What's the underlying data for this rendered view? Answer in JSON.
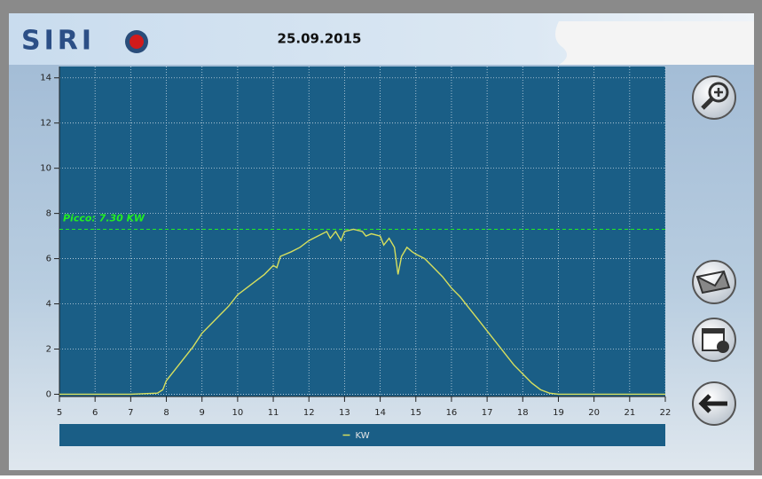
{
  "header": {
    "logo": "SIRI",
    "date": "25.09.2015"
  },
  "chart_data": {
    "type": "line",
    "x": [
      5,
      6,
      7,
      7.75,
      7.9,
      8,
      8.25,
      8.5,
      8.75,
      9,
      9.25,
      9.5,
      9.75,
      10,
      10.25,
      10.5,
      10.75,
      11,
      11.1,
      11.2,
      11.5,
      11.75,
      12,
      12.25,
      12.5,
      12.6,
      12.75,
      12.9,
      13,
      13.25,
      13.5,
      13.6,
      13.75,
      14,
      14.1,
      14.25,
      14.4,
      14.5,
      14.6,
      14.75,
      14.9,
      15,
      15.25,
      15.5,
      15.75,
      16,
      16.25,
      16.5,
      16.75,
      17,
      17.25,
      17.5,
      17.75,
      18,
      18.25,
      18.5,
      18.75,
      19,
      20,
      21,
      22
    ],
    "series": [
      {
        "name": "KW",
        "color": "#d6df5e",
        "values": [
          0,
          0,
          0,
          0.05,
          0.2,
          0.6,
          1.1,
          1.6,
          2.1,
          2.7,
          3.1,
          3.5,
          3.9,
          4.4,
          4.7,
          5.0,
          5.3,
          5.7,
          5.6,
          6.1,
          6.3,
          6.5,
          6.8,
          7.0,
          7.2,
          6.9,
          7.2,
          6.8,
          7.2,
          7.3,
          7.2,
          7.0,
          7.1,
          7.0,
          6.6,
          6.9,
          6.5,
          5.3,
          6.1,
          6.5,
          6.3,
          6.2,
          6.0,
          5.6,
          5.2,
          4.7,
          4.3,
          3.8,
          3.3,
          2.8,
          2.3,
          1.8,
          1.3,
          0.9,
          0.5,
          0.2,
          0.05,
          0,
          0,
          0,
          0
        ]
      }
    ],
    "peak": {
      "value": 7.3,
      "label": "Picco: 7.30 KW",
      "color": "#22ee22"
    },
    "xlim": [
      5,
      22
    ],
    "xticks": [
      5,
      6,
      7,
      8,
      9,
      10,
      11,
      12,
      13,
      14,
      15,
      16,
      17,
      18,
      19,
      20,
      21,
      22
    ],
    "ylim": [
      -0.1,
      14.5
    ],
    "yticks": [
      0,
      2,
      4,
      6,
      8,
      10,
      12,
      14
    ],
    "grid": true,
    "legend": "bottom"
  }
}
